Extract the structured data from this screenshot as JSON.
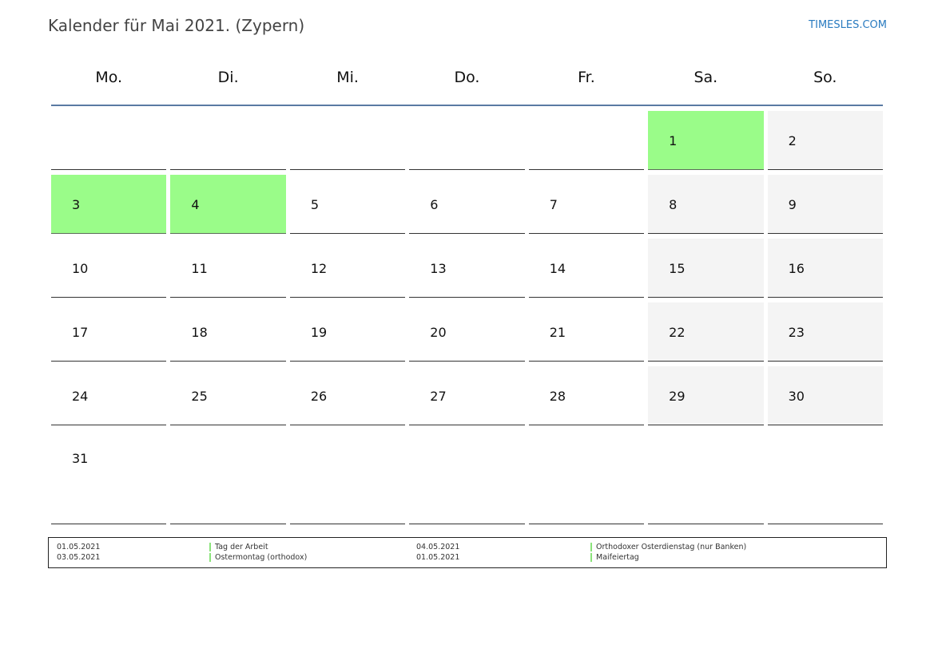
{
  "title": "Kalender für Mai 2021. (Zypern)",
  "brand": "TIMESLES.COM",
  "colors": {
    "holiday": "#9afc89",
    "weekend": "#f4f4f4",
    "rule": "#5a7aa3",
    "brand": "#2a7bc0"
  },
  "weekdays": [
    "Mo.",
    "Di.",
    "Mi.",
    "Do.",
    "Fr.",
    "Sa.",
    "So."
  ],
  "weeks": [
    [
      {
        "d": "",
        "t": ""
      },
      {
        "d": "",
        "t": ""
      },
      {
        "d": "",
        "t": ""
      },
      {
        "d": "",
        "t": ""
      },
      {
        "d": "",
        "t": ""
      },
      {
        "d": "1",
        "t": "holiday"
      },
      {
        "d": "2",
        "t": "weekend"
      }
    ],
    [
      {
        "d": "3",
        "t": "holiday"
      },
      {
        "d": "4",
        "t": "holiday"
      },
      {
        "d": "5",
        "t": ""
      },
      {
        "d": "6",
        "t": ""
      },
      {
        "d": "7",
        "t": ""
      },
      {
        "d": "8",
        "t": "weekend"
      },
      {
        "d": "9",
        "t": "weekend"
      }
    ],
    [
      {
        "d": "10",
        "t": ""
      },
      {
        "d": "11",
        "t": ""
      },
      {
        "d": "12",
        "t": ""
      },
      {
        "d": "13",
        "t": ""
      },
      {
        "d": "14",
        "t": ""
      },
      {
        "d": "15",
        "t": "weekend"
      },
      {
        "d": "16",
        "t": "weekend"
      }
    ],
    [
      {
        "d": "17",
        "t": ""
      },
      {
        "d": "18",
        "t": ""
      },
      {
        "d": "19",
        "t": ""
      },
      {
        "d": "20",
        "t": ""
      },
      {
        "d": "21",
        "t": ""
      },
      {
        "d": "22",
        "t": "weekend"
      },
      {
        "d": "23",
        "t": "weekend"
      }
    ],
    [
      {
        "d": "24",
        "t": ""
      },
      {
        "d": "25",
        "t": ""
      },
      {
        "d": "26",
        "t": ""
      },
      {
        "d": "27",
        "t": ""
      },
      {
        "d": "28",
        "t": ""
      },
      {
        "d": "29",
        "t": "weekend"
      },
      {
        "d": "30",
        "t": "weekend"
      }
    ],
    [
      {
        "d": "31",
        "t": ""
      },
      {
        "d": "",
        "t": ""
      },
      {
        "d": "",
        "t": ""
      },
      {
        "d": "",
        "t": ""
      },
      {
        "d": "",
        "t": ""
      },
      {
        "d": "",
        "t": ""
      },
      {
        "d": "",
        "t": ""
      }
    ]
  ],
  "holidays": [
    {
      "date": "01.05.2021",
      "name": "Tag der Arbeit"
    },
    {
      "date": "03.05.2021",
      "name": "Ostermontag (orthodox)"
    },
    {
      "date": "04.05.2021",
      "name": "Orthodoxer Osterdienstag (nur Banken)"
    },
    {
      "date": "01.05.2021",
      "name": "Maifeiertag"
    }
  ]
}
